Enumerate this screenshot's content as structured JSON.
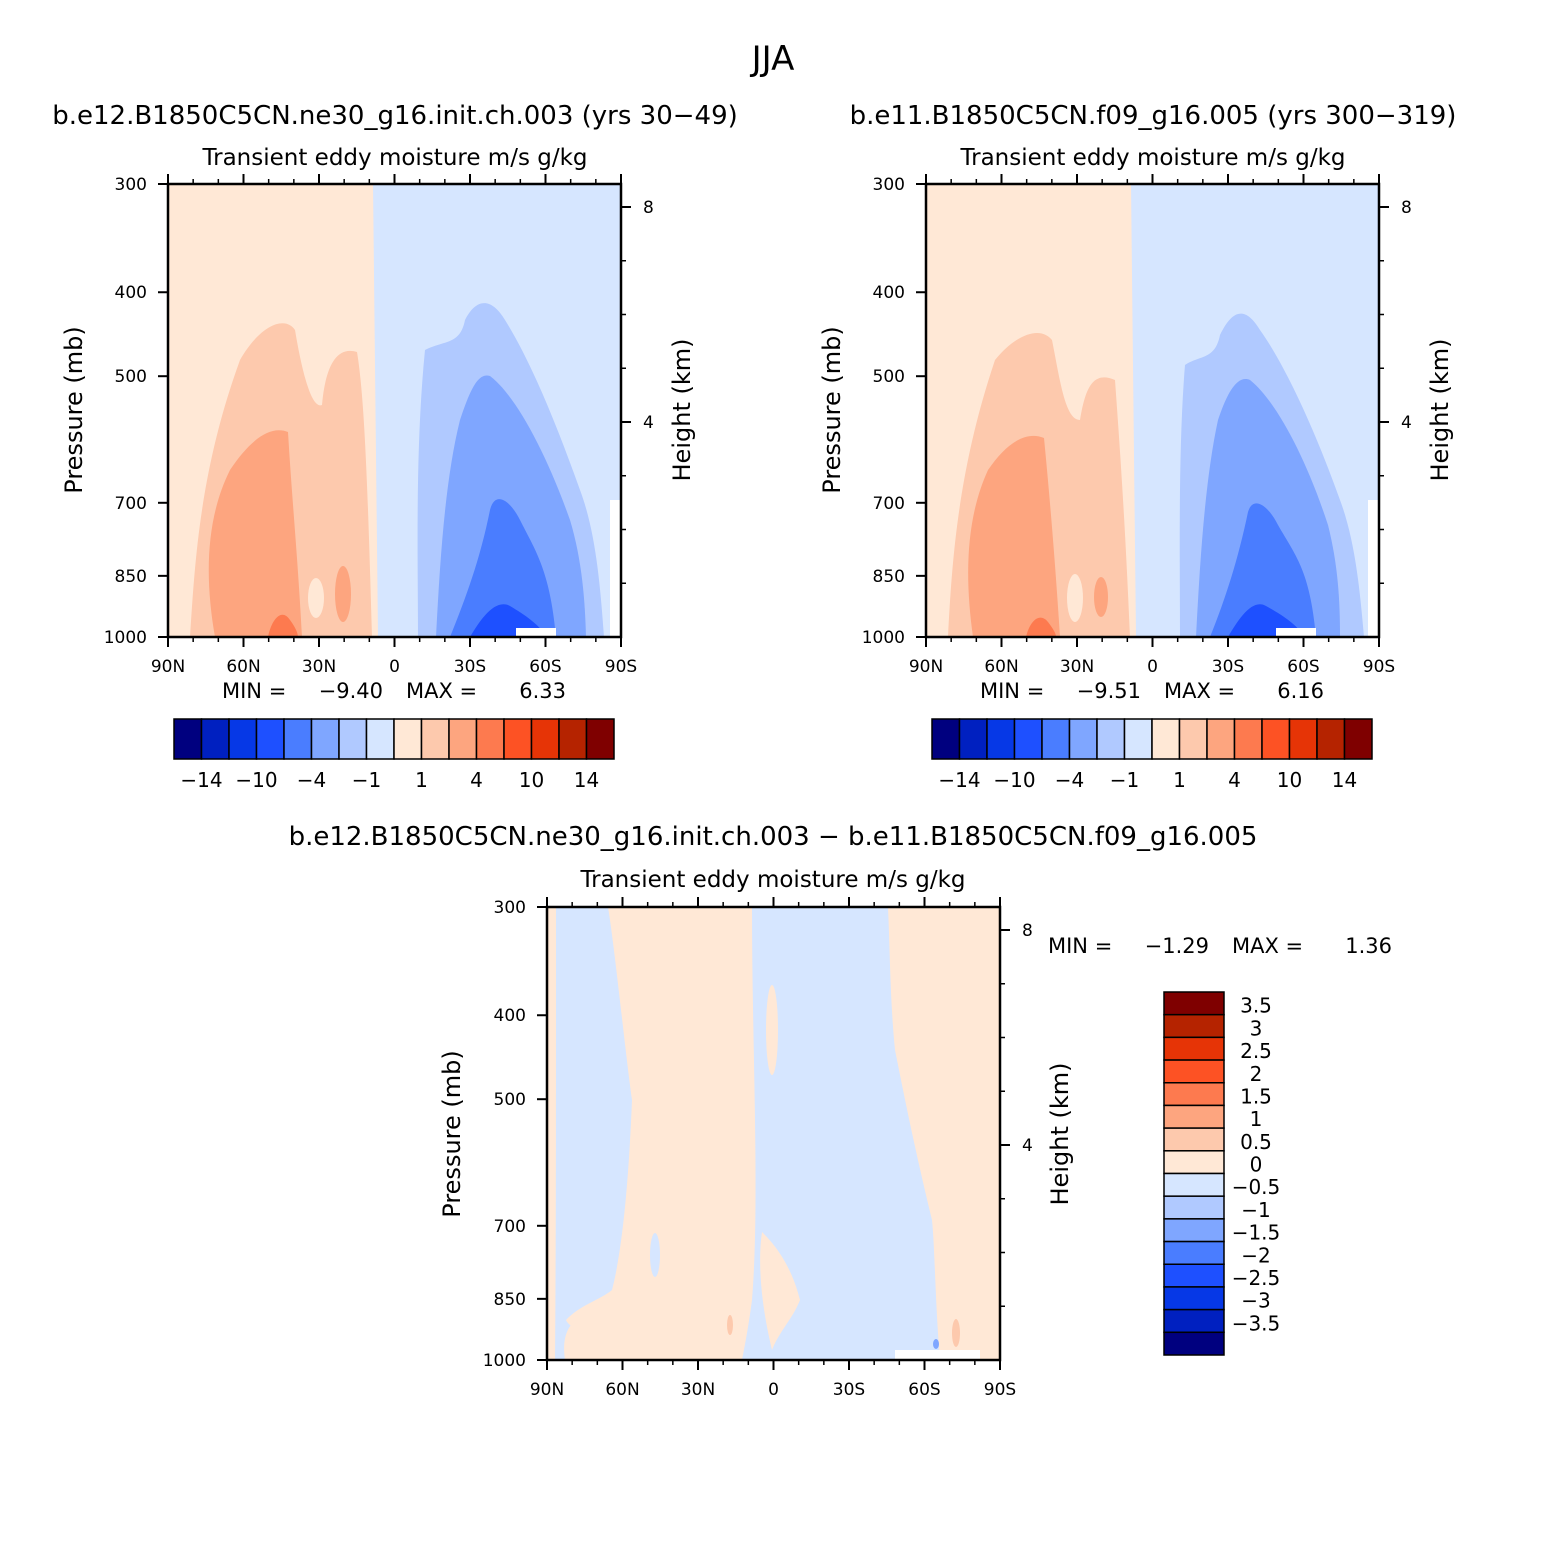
{
  "suptitle": "JJA",
  "panels": [
    {
      "title": "b.e12.B1850C5CN.ne30_g16.init.ch.003 (yrs 30-49)",
      "subtitle": "Transient  eddy  moisture m/s  g/kg",
      "min_label": "MIN =",
      "min_value": "-9.40",
      "max_label": "MAX =",
      "max_value": "6.33"
    },
    {
      "title": "b.e11.B1850C5CN.f09_g16.005 (yrs 300-319)",
      "subtitle": "Transient  eddy  moisture m/s  g/kg",
      "min_label": "MIN =",
      "min_value": "-9.51",
      "max_label": "MAX =",
      "max_value": "6.16"
    },
    {
      "title": "b.e12.B1850C5CN.ne30_g16.init.ch.003 - b.e11.B1850C5CN.f09_g16.005",
      "subtitle": "Transient  eddy  moisture m/s  g/kg",
      "min_label": "MIN =",
      "min_value": "-1.29",
      "max_label": "MAX =",
      "max_value": "1.36"
    }
  ],
  "axes": {
    "ylabel_left": "Pressure (mb)",
    "ylabel_right": "Height (km)",
    "pressure_ticks": [
      "300",
      "400",
      "500",
      "700",
      "850",
      "1000"
    ],
    "height_ticks": [
      "8",
      "4"
    ],
    "lat_ticks": [
      "90N",
      "60N",
      "30N",
      "0",
      "30S",
      "60S",
      "90S"
    ]
  },
  "colorbars": {
    "top_colors": [
      "#00007f",
      "#0020c0",
      "#0638e6",
      "#1e50ff",
      "#4a7dff",
      "#7fa6ff",
      "#b0c9ff",
      "#d6e6ff",
      "#ffe8d6",
      "#fdc9ad",
      "#fda57f",
      "#fd7a4f",
      "#fd5224",
      "#e63406",
      "#b52300",
      "#7f0000"
    ],
    "top_labels": [
      "-14",
      "-10",
      "-4",
      "-1",
      "1",
      "4",
      "10",
      "14"
    ],
    "diff_colors": [
      "#00007f",
      "#0020c0",
      "#0638e6",
      "#1e50ff",
      "#4a7dff",
      "#7fa6ff",
      "#b0c9ff",
      "#d6e6ff",
      "#ffe8d6",
      "#fdc9ad",
      "#fda57f",
      "#fd7a4f",
      "#fd5224",
      "#e63406",
      "#b52300",
      "#7f0000"
    ],
    "diff_labels": [
      "3.5",
      "3",
      "2.5",
      "2",
      "1.5",
      "1",
      "0.5",
      "0",
      "-0.5",
      "-1",
      "-1.5",
      "-2",
      "-2.5",
      "-3",
      "-3.5"
    ]
  },
  "chart_data": [
    {
      "type": "heatmap",
      "title": "b.e12.B1850C5CN.ne30_g16.init.ch.003 (yrs 30-49)",
      "subtitle": "Transient  eddy  moisture m/s  g/kg",
      "x": [
        "90N",
        "60N",
        "30N",
        "0",
        "30S",
        "60S",
        "90S"
      ],
      "y_pressure_mb": [
        300,
        400,
        500,
        700,
        850,
        1000
      ],
      "ylabel": "Pressure (mb)",
      "y2label": "Height (km)",
      "min": -9.4,
      "max": 6.33,
      "contour_levels": [
        -14,
        -10,
        -4,
        -1,
        1,
        4,
        10,
        14
      ]
    },
    {
      "type": "heatmap",
      "title": "b.e11.B1850C5CN.f09_g16.005 (yrs 300-319)",
      "subtitle": "Transient  eddy  moisture m/s  g/kg",
      "x": [
        "90N",
        "60N",
        "30N",
        "0",
        "30S",
        "60S",
        "90S"
      ],
      "y_pressure_mb": [
        300,
        400,
        500,
        700,
        850,
        1000
      ],
      "ylabel": "Pressure (mb)",
      "y2label": "Height (km)",
      "min": -9.51,
      "max": 6.16,
      "contour_levels": [
        -14,
        -10,
        -4,
        -1,
        1,
        4,
        10,
        14
      ]
    },
    {
      "type": "heatmap",
      "title": "b.e12.B1850C5CN.ne30_g16.init.ch.003 - b.e11.B1850C5CN.f09_g16.005",
      "subtitle": "Transient  eddy  moisture m/s  g/kg",
      "x": [
        "90N",
        "60N",
        "30N",
        "0",
        "30S",
        "60S",
        "90S"
      ],
      "y_pressure_mb": [
        300,
        400,
        500,
        700,
        850,
        1000
      ],
      "ylabel": "Pressure (mb)",
      "y2label": "Height (km)",
      "min": -1.29,
      "max": 1.36,
      "contour_levels": [
        -3.5,
        -3,
        -2.5,
        -2,
        -1.5,
        -1,
        -0.5,
        0,
        0.5,
        1,
        1.5,
        2,
        2.5,
        3,
        3.5
      ]
    }
  ]
}
